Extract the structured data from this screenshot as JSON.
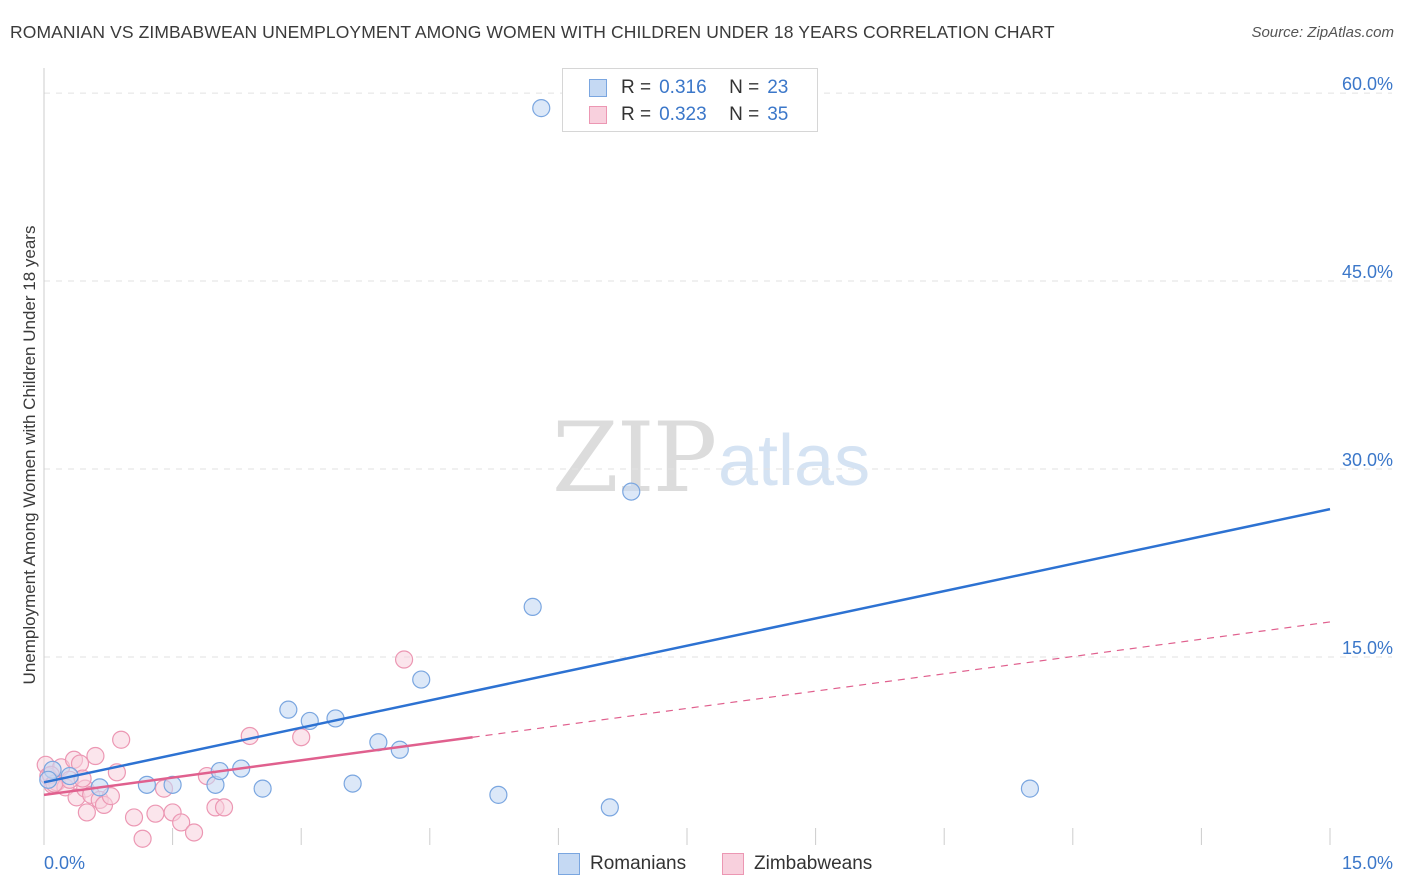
{
  "header": {
    "title": "ROMANIAN VS ZIMBABWEAN UNEMPLOYMENT AMONG WOMEN WITH CHILDREN UNDER 18 YEARS CORRELATION CHART",
    "source": "Source: ZipAtlas.com"
  },
  "watermark": {
    "zip": "ZIP",
    "atlas": "atlas"
  },
  "legend": {
    "rows": [
      {
        "r_label": "R =",
        "r_value": "0.316",
        "n_label": "N =",
        "n_value": "23"
      },
      {
        "r_label": "R =",
        "r_value": "0.323",
        "n_label": "N =",
        "n_value": "35"
      }
    ]
  },
  "colors": {
    "romanians": "#7aa6e0",
    "romanians_fill": "#c5d9f3",
    "romanians_line": "#2d72d2",
    "zimbabweans": "#ec97b3",
    "zimbabweans_fill": "#f8d0dd",
    "zimbabweans_line": "#e0608e",
    "axis_text": "#3b77c9",
    "grid": "#e2e2e2"
  },
  "chart_data": {
    "type": "scatter",
    "title": "ROMANIAN VS ZIMBABWEAN UNEMPLOYMENT AMONG WOMEN WITH CHILDREN UNDER 18 YEARS CORRELATION CHART",
    "xlabel": "",
    "ylabel": "Unemployment Among Women with Children Under 18 years",
    "xlim": [
      0,
      15
    ],
    "ylim": [
      0,
      62
    ],
    "x_tick_labels": [
      "0.0%",
      "15.0%"
    ],
    "y_ticks": [
      15,
      30,
      45,
      60
    ],
    "y_tick_labels": [
      "15.0%",
      "30.0%",
      "45.0%",
      "60.0%"
    ],
    "legend_position": "top-center",
    "series": [
      {
        "name": "Romanians",
        "points": [
          [
            0.1,
            6.0
          ],
          [
            0.3,
            5.5
          ],
          [
            0.65,
            4.6
          ],
          [
            1.2,
            4.8
          ],
          [
            1.5,
            4.8
          ],
          [
            2.0,
            4.8
          ],
          [
            2.05,
            5.9
          ],
          [
            2.3,
            6.1
          ],
          [
            2.55,
            4.5
          ],
          [
            2.85,
            10.8
          ],
          [
            3.1,
            9.9
          ],
          [
            3.4,
            10.1
          ],
          [
            3.6,
            4.9
          ],
          [
            3.9,
            8.2
          ],
          [
            4.15,
            7.6
          ],
          [
            4.4,
            13.2
          ],
          [
            5.3,
            4.0
          ],
          [
            5.7,
            19.0
          ],
          [
            5.8,
            58.8
          ],
          [
            6.6,
            3.0
          ],
          [
            6.85,
            28.2
          ],
          [
            11.5,
            4.5
          ],
          [
            0.05,
            5.2
          ]
        ],
        "trend": {
          "x": [
            0.0,
            15.0
          ],
          "y": [
            5.0,
            26.8
          ],
          "style": "solid"
        }
      },
      {
        "name": "Zimbabweans",
        "points": [
          [
            0.02,
            6.4
          ],
          [
            0.05,
            5.5
          ],
          [
            0.1,
            4.8
          ],
          [
            0.15,
            5.0
          ],
          [
            0.2,
            6.2
          ],
          [
            0.25,
            4.6
          ],
          [
            0.3,
            5.2
          ],
          [
            0.35,
            6.8
          ],
          [
            0.38,
            3.8
          ],
          [
            0.42,
            6.5
          ],
          [
            0.48,
            4.5
          ],
          [
            0.5,
            2.6
          ],
          [
            0.55,
            4.0
          ],
          [
            0.6,
            7.1
          ],
          [
            0.65,
            3.6
          ],
          [
            0.7,
            3.2
          ],
          [
            0.78,
            3.9
          ],
          [
            0.85,
            5.8
          ],
          [
            0.9,
            8.4
          ],
          [
            1.05,
            2.2
          ],
          [
            1.15,
            0.5
          ],
          [
            1.3,
            2.5
          ],
          [
            1.4,
            4.5
          ],
          [
            1.5,
            2.6
          ],
          [
            1.6,
            1.8
          ],
          [
            1.75,
            1.0
          ],
          [
            1.9,
            5.5
          ],
          [
            2.0,
            3.0
          ],
          [
            2.1,
            3.0
          ],
          [
            2.4,
            8.7
          ],
          [
            3.0,
            8.6
          ],
          [
            4.2,
            14.8
          ],
          [
            0.08,
            5.6
          ],
          [
            0.12,
            4.9
          ],
          [
            0.45,
            5.3
          ]
        ],
        "trend": {
          "x": [
            0.0,
            5.0
          ],
          "y": [
            4.0,
            8.6
          ],
          "style": "solid"
        },
        "trend_extension": {
          "x": [
            5.0,
            15.0
          ],
          "y": [
            8.6,
            17.8
          ],
          "style": "dashed"
        }
      }
    ]
  },
  "bottom_legend": {
    "items": [
      {
        "label": "Romanians"
      },
      {
        "label": "Zimbabweans"
      }
    ]
  }
}
